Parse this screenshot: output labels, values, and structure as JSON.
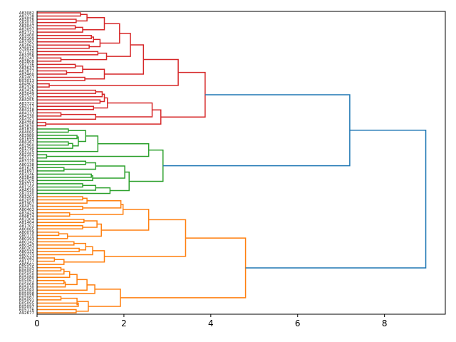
{
  "chart_data": {
    "type": "dendrogram",
    "orientation": "right",
    "title": "",
    "xlabel": "",
    "ylabel": "",
    "xlim": [
      0,
      9.4
    ],
    "xticks": [
      0,
      2,
      4,
      6,
      8
    ],
    "color_threshold": 6.27,
    "above_threshold_color": "#1f77b4",
    "cluster_colors": [
      "#d62728",
      "#2ca02c",
      "#ff7f0e"
    ],
    "tree": [
      8.95,
      [
        7.2,
        [
          3.87,
          [
            3.25,
            [
              2.45,
              [
                2.15,
                [
                  1.9,
                  [
                    1.55,
                    [
                      1.15,
                      [
                        1.0,
                        "A83082",
                        "A83238"
                      ],
                      [
                        0.9,
                        "A83076",
                        "A83070"
                      ]
                    ],
                    [
                      1.05,
                      [
                        0.88,
                        "A83047",
                        "A83097"
                      ],
                      "A82723"
                    ]
                  ],
                  [
                    1.45,
                    [
                      1.3,
                      [
                        1.25,
                        "A83400",
                        "A83100"
                      ],
                      "A83382"
                    ],
                    [
                      1.2,
                      "A83062",
                      "A79012"
                    ]
                  ]
                ],
                [
                  1.6,
                  [
                    1.4,
                    "A77320",
                    "A83356"
                  ],
                  [
                    0.55,
                    "A83247",
                    "A83808"
                  ]
                ]
              ],
              [
                1.55,
                [
                  1.05,
                  [
                    0.88,
                    "A82736",
                    "A83637"
                  ],
                  [
                    0.68,
                    "A83877",
                    "A83460"
                  ]
                ],
                [
                  1.1,
                  "A83407",
                  "B03013"
                ]
              ]
            ],
            [
              0.28,
              "A84902",
              "A82326"
            ]
          ],
          [
            2.85,
            [
              2.65,
              [
                1.62,
                [
                  1.55,
                  [
                    1.5,
                    [
                      1.35,
                      "A83436",
                      "A83049"
                    ],
                    "A82242"
                  ],
                  [
                    1.45,
                    "A84255",
                    "A83722"
                  ]
                ],
                [
                  1.3,
                  "A84117",
                  "A84118"
                ]
              ],
              [
                1.35,
                [
                  0.55,
                  "A84133",
                  "A84130"
                ],
                "A84151"
              ]
            ],
            [
              0.2,
              "A84756",
              "A83830"
            ]
          ]
        ],
        [
          2.9,
          [
            2.57,
            [
              1.4,
              [
                1.12,
                [
                  0.72,
                  "A81830",
                  "A84085"
                ],
                [
                  0.95,
                  [
                    0.92,
                    "A83980",
                    "A81695"
                  ],
                  [
                    0.82,
                    [
                      0.72,
                      "A84167",
                      "A82960"
                    ],
                    "A81790"
                  ]
                ]
              ],
              "A83125"
            ],
            [
              0.22,
              "A82152",
              "A83112"
            ]
          ],
          [
            2.12,
            [
              2.02,
              [
                1.35,
                [
                  1.12,
                  "A83120",
                  "A80138"
                ],
                [
                  0.62,
                  "A81626",
                  "A81697"
                ]
              ],
              [
                1.28,
                [
                  1.25,
                  "A83246",
                  "A83848"
                ],
                "A83209"
              ]
            ],
            [
              1.68,
              [
                1.35,
                [
                  1.05,
                  "A83711",
                  "A81195"
                ],
                "A84520"
              ],
              "A82330"
            ]
          ]
        ]
      ],
      [
        4.8,
        [
          3.42,
          [
            2.57,
            [
              1.98,
              [
                1.93,
                [
                  1.15,
                  [
                    1.05,
                    "A83201",
                    "A82058"
                  ],
                  "A81907"
                ],
                [
                  1.05,
                  "A84470",
                  "A80402"
                ]
              ],
              [
                0.75,
                "A83424",
                "A84874"
              ]
            ],
            [
              1.48,
              [
                1.38,
                [
                  1.08,
                  "A83304",
                  "A81404"
                ],
                [
                  1.05,
                  "A81702",
                  "A80085"
                ]
              ],
              [
                0.7,
                [
                  0.5,
                  "A80079",
                  "A80170"
                ],
                "A80193"
              ]
            ]
          ],
          [
            1.55,
            [
              1.28,
              [
                1.12,
                [
                  0.85,
                  "A80142",
                  "A80143"
                ],
                [
                  0.97,
                  "A80202",
                  "A80132"
                ]
              ],
              "A80233"
            ],
            [
              0.62,
              [
                0.4,
                "A80247",
                "A81377"
              ],
              "A80561"
            ]
          ]
        ],
        [
          1.92,
          [
            1.33,
            [
              1.15,
              [
                0.92,
                [
                  0.75,
                  [
                    0.62,
                    [
                      0.55,
                      "B05045",
                      "B05052"
                    ],
                    "B05050"
                  ],
                  "B05080"
                ],
                [
                  0.65,
                  [
                    0.62,
                    "B05061",
                    "B05068"
                  ],
                  "B05030"
                ]
              ],
              "B05084"
            ],
            "B05098"
          ],
          [
            1.18,
            [
              0.92,
              [
                0.55,
                "B05087",
                "B05091"
              ],
              [
                0.95,
                "B05095",
                "B05097"
              ]
            ],
            [
              0.9,
              "B05176",
              "A92677"
            ]
          ]
        ]
      ]
    ]
  }
}
